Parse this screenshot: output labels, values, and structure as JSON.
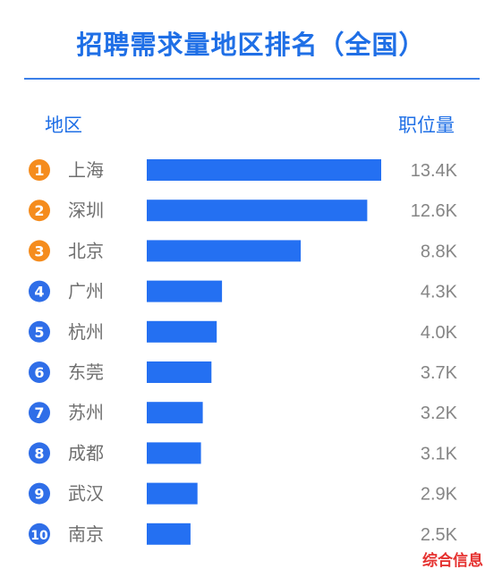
{
  "header": {
    "title": "招聘需求量地区排名（全国）",
    "col_region": "地区",
    "col_count": "职位量"
  },
  "footer": {
    "source": "综合信息"
  },
  "colors": {
    "bar": "#2470f2",
    "accent_top": "#f58c1d",
    "accent_rest": "#2f6ee8",
    "title": "#1f6fe6",
    "footer": "#e5312f"
  },
  "chart_data": {
    "type": "bar",
    "orientation": "horizontal",
    "title": "招聘需求量地区排名（全国）",
    "xlabel": "职位量",
    "ylabel": "地区",
    "xlim": [
      0,
      13.4
    ],
    "grid": false,
    "categories": [
      "上海",
      "深圳",
      "北京",
      "广州",
      "杭州",
      "东莞",
      "苏州",
      "成都",
      "武汉",
      "南京"
    ],
    "ranks": [
      "1",
      "2",
      "3",
      "4",
      "5",
      "6",
      "7",
      "8",
      "9",
      "10"
    ],
    "values": [
      13.4,
      12.6,
      8.8,
      4.3,
      4.0,
      3.7,
      3.2,
      3.1,
      2.9,
      2.5
    ],
    "value_labels": [
      "13.4K",
      "12.6K",
      "8.8K",
      "4.3K",
      "4.0K",
      "3.7K",
      "3.2K",
      "3.1K",
      "2.9K",
      "2.5K"
    ]
  }
}
